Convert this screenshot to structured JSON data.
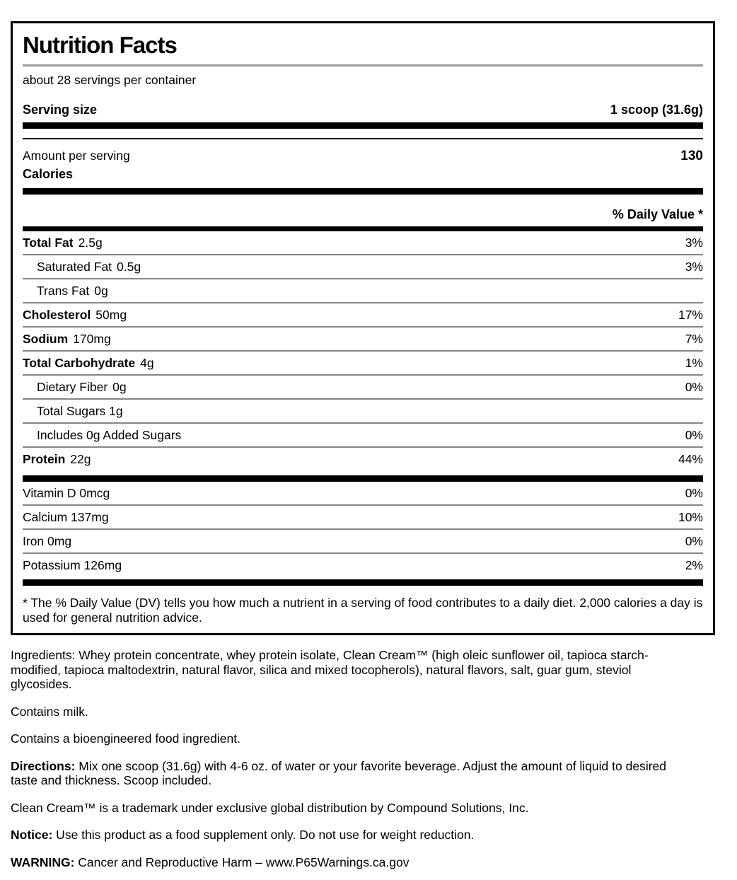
{
  "colors": {
    "text": "#000000",
    "thick_bar": "#000000",
    "separator": "#868686",
    "title_rule": "#9a9a9a",
    "background": "#ffffff"
  },
  "label": {
    "title": "Nutrition Facts",
    "servings_per_container": "about 28 servings per container",
    "serving_size_label": "Serving size",
    "serving_size_value": "1 scoop (31.6g)",
    "amount_per_serving_label": "Amount per serving",
    "calories_label": "Calories",
    "calories_value": "130",
    "daily_value_header": "% Daily Value *",
    "rows": [
      {
        "name": "Total Fat",
        "amount": "2.5g",
        "dv": "3%",
        "bold": true,
        "indent": 0
      },
      {
        "name": "Saturated Fat",
        "amount": "0.5g",
        "dv": "3%",
        "bold": false,
        "indent": 1
      },
      {
        "name": "Trans Fat",
        "amount": "0g",
        "dv": "",
        "bold": false,
        "indent": 1
      },
      {
        "name": "Cholesterol",
        "amount": "50mg",
        "dv": "17%",
        "bold": true,
        "indent": 0
      },
      {
        "name": "Sodium",
        "amount": "170mg",
        "dv": "7%",
        "bold": true,
        "indent": 0
      },
      {
        "name": "Total Carbohydrate",
        "amount": "4g",
        "dv": "1%",
        "bold": true,
        "indent": 0
      },
      {
        "name": "Dietary Fiber",
        "amount": "0g",
        "dv": "0%",
        "bold": false,
        "indent": 1
      },
      {
        "name": "Total Sugars 1g",
        "amount": "",
        "dv": "",
        "bold": false,
        "indent": 1
      },
      {
        "name": "Includes 0g Added Sugars",
        "amount": "",
        "dv": "0%",
        "bold": false,
        "indent": 1
      },
      {
        "name": "Protein",
        "amount": "22g",
        "dv": "44%",
        "bold": true,
        "indent": 0
      }
    ],
    "micronutrients": [
      {
        "name": "Vitamin D 0mcg",
        "dv": "0%"
      },
      {
        "name": "Calcium 137mg",
        "dv": "10%"
      },
      {
        "name": "Iron 0mg",
        "dv": "0%"
      },
      {
        "name": "Potassium 126mg",
        "dv": "2%"
      }
    ],
    "footnote": "* The % Daily Value (DV) tells you how much a nutrient in a serving of food contributes to a daily diet. 2,000 calories a day is used for general nutrition advice."
  },
  "info": {
    "ingredients": "Ingredients: Whey protein concentrate, whey protein isolate, Clean Cream™ (high oleic sunflower oil, tapioca starch-modified, tapioca maltodextrin, natural flavor, silica and mixed tocopherols), natural flavors, salt, guar gum, steviol glycosides.",
    "contains": "Contains milk.",
    "bioengineered": "Contains a bioengineered food ingredient.",
    "directions_label": "Directions:",
    "directions_text": " Mix one scoop (31.6g) with 4-6 oz. of water or your favorite beverage. Adjust the amount of liquid to desired taste and thickness. Scoop included.",
    "trademark": "Clean Cream™ is a trademark under exclusive global distribution by Compound Solutions, Inc.",
    "notice_label": "Notice:",
    "notice_text": " Use this product as a food supplement only. Do not use for weight reduction.",
    "warning_label": "WARNING:",
    "warning_text": " Cancer and Reproductive Harm – www.P65Warnings.ca.gov"
  }
}
